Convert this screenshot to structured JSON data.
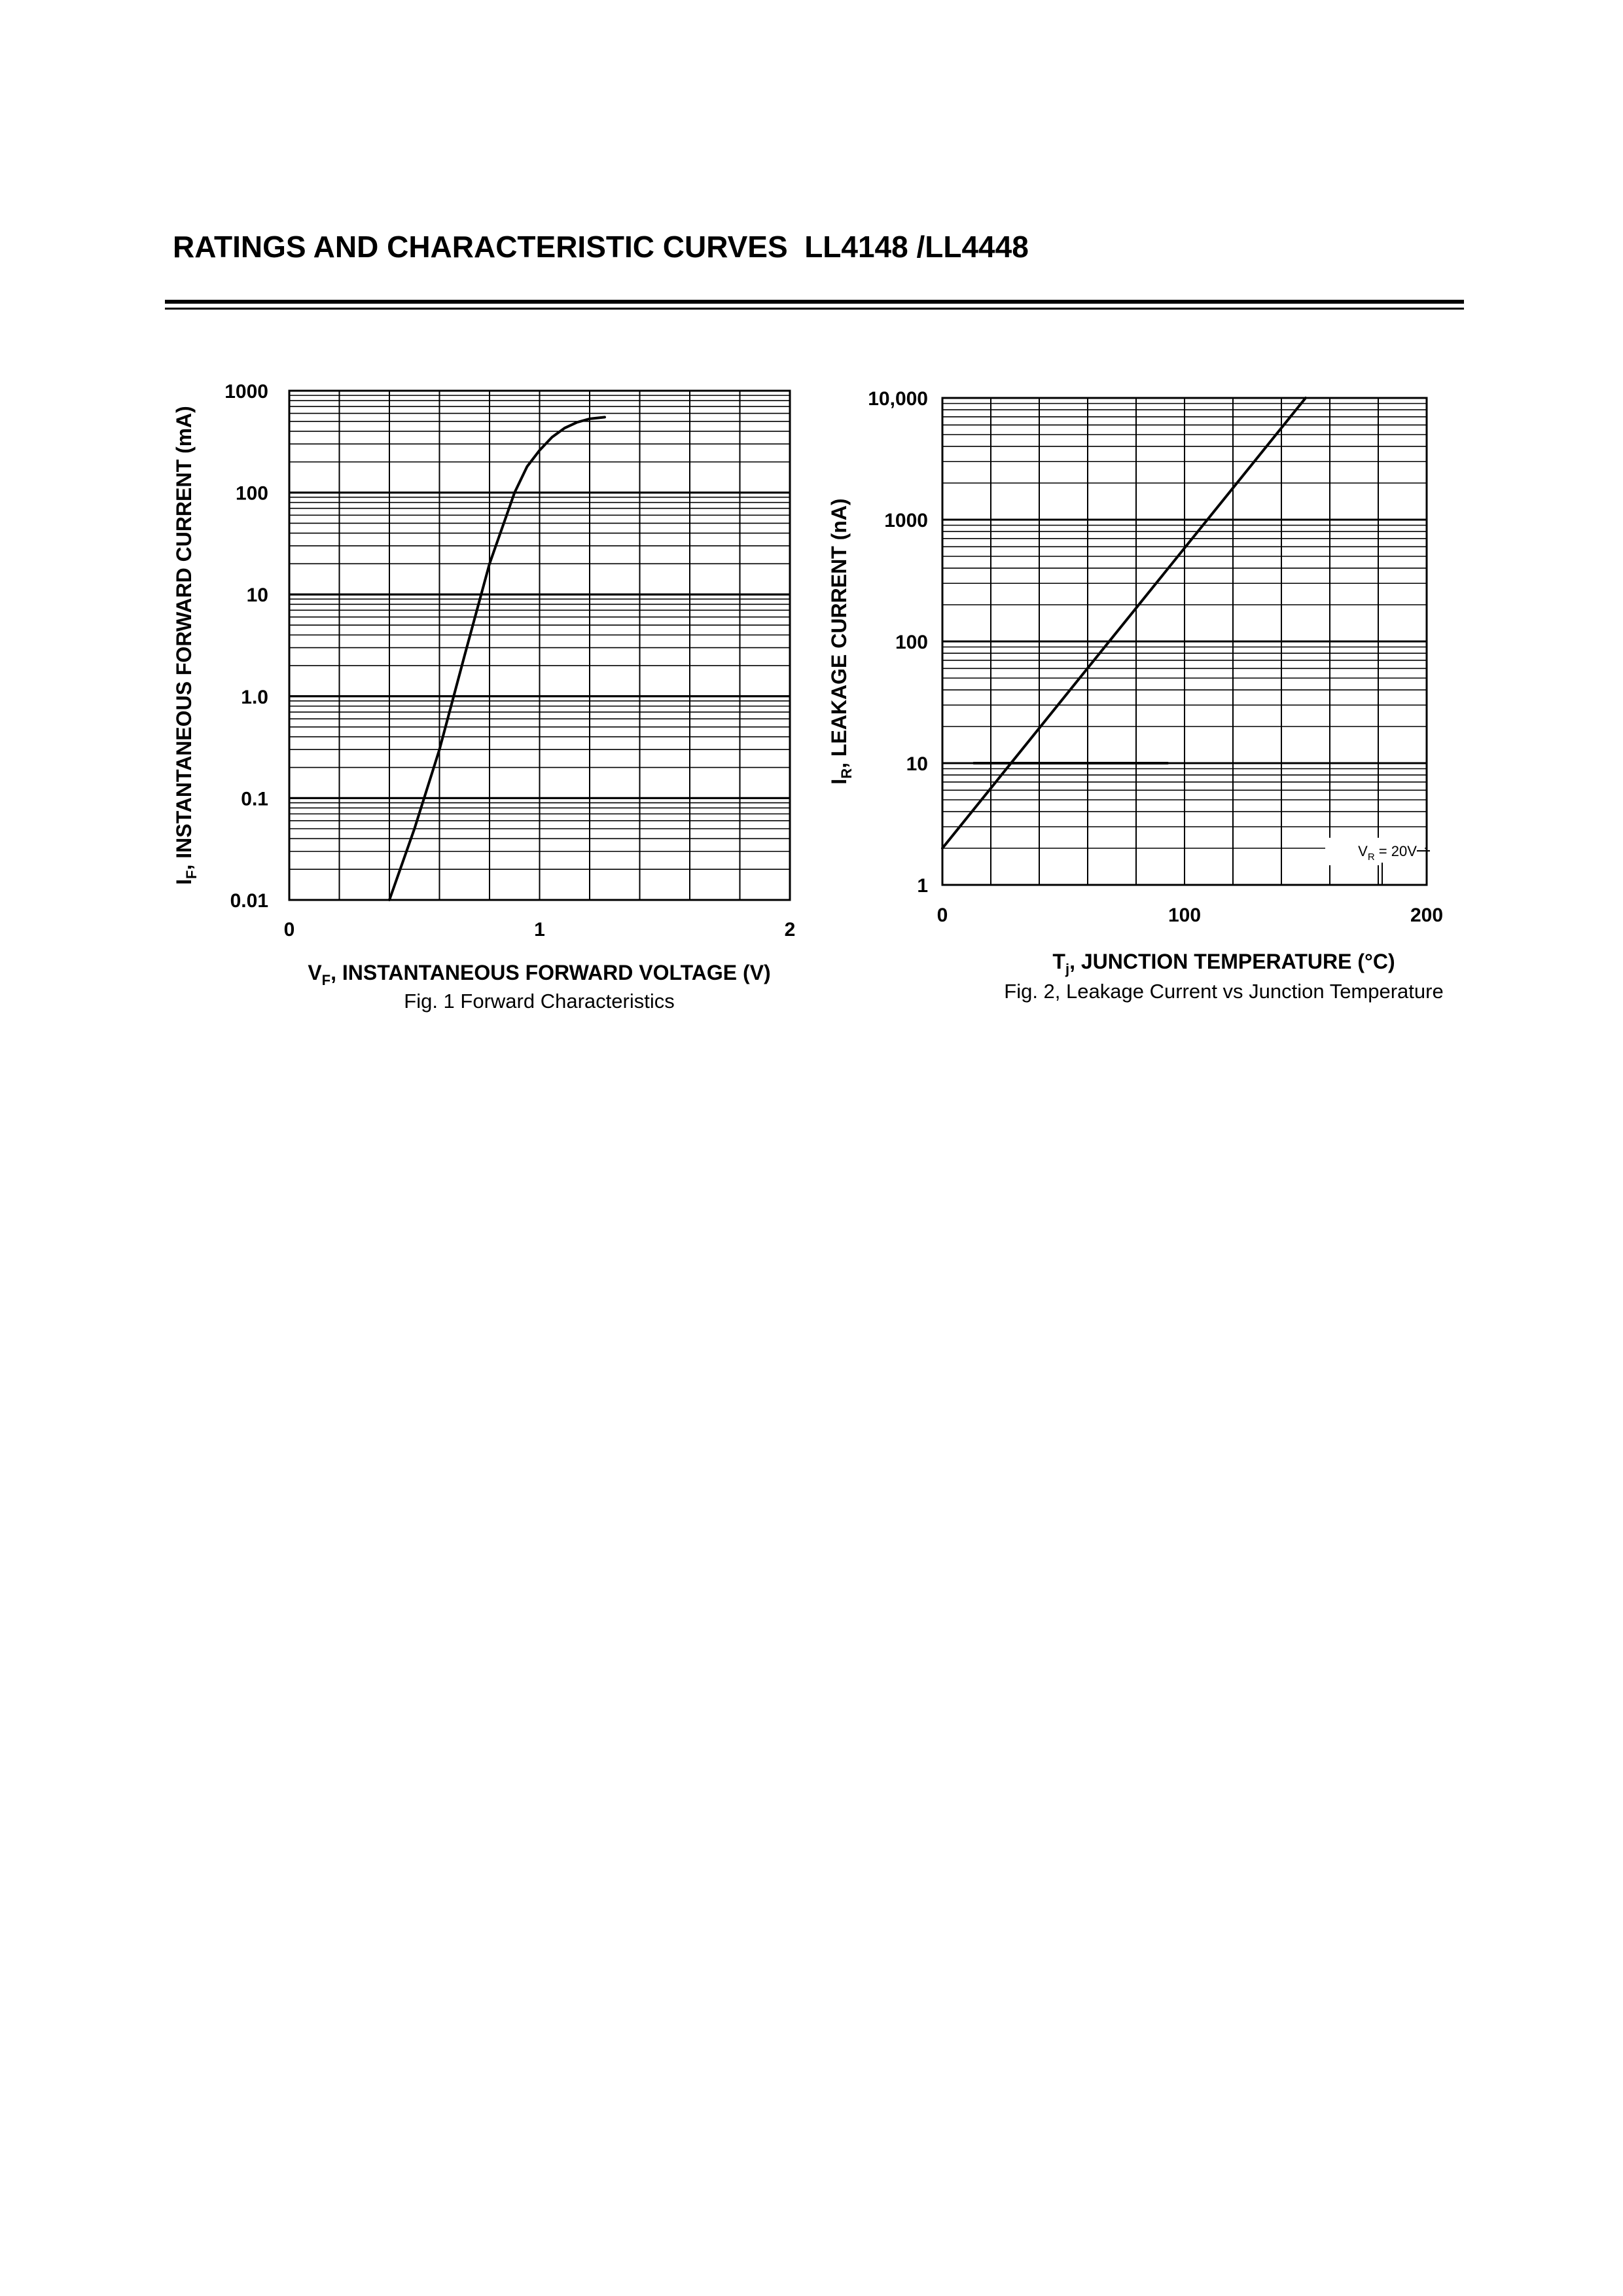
{
  "page": {
    "title": "RATINGS AND CHARACTERISTIC CURVES  LL4148 /LL4448"
  },
  "chart_data": [
    {
      "type": "line",
      "title": "",
      "caption": "Fig. 1  Forward Characteristics",
      "xlabel": {
        "symbol": "V",
        "sub": "F",
        "text": ", INSTANTANEOUS FORWARD VOLTAGE (V)"
      },
      "ylabel": {
        "symbol": "I",
        "sub": "F",
        "text": ", INSTANTANEOUS FORWARD CURRENT (mA)"
      },
      "xlim": [
        0,
        2
      ],
      "ylim": [
        0.01,
        1000
      ],
      "yscale": "log",
      "x_ticks": [
        0,
        1,
        2
      ],
      "x_tick_labels": [
        "0",
        "1",
        "2"
      ],
      "y_ticks": [
        1000,
        100,
        10,
        1,
        0.1,
        0.01
      ],
      "y_tick_labels": [
        "1000",
        "100",
        "10",
        "1.0",
        "0.1",
        "0.01"
      ],
      "grid": true,
      "series": [
        {
          "x": [
            0.4,
            0.5,
            0.6,
            0.7,
            0.8,
            0.9,
            0.95,
            1.0,
            1.05,
            1.1,
            1.15,
            1.2,
            1.26
          ],
          "values": [
            0.01,
            0.05,
            0.3,
            2.5,
            20,
            100,
            180,
            260,
            350,
            430,
            490,
            530,
            550
          ]
        }
      ]
    },
    {
      "type": "line",
      "title": "",
      "caption": "Fig. 2,  Leakage Current vs Junction Temperature",
      "xlabel": {
        "symbol": "T",
        "sub": "j",
        "text": ", JUNCTION TEMPERATURE (°C)"
      },
      "ylabel": {
        "symbol": "I",
        "sub": "R",
        "text": ", LEAKAGE CURRENT (nA)"
      },
      "xlim": [
        0,
        200
      ],
      "ylim": [
        1,
        10000
      ],
      "yscale": "log",
      "x_ticks": [
        0,
        100,
        200
      ],
      "x_tick_labels": [
        "0",
        "100",
        "200"
      ],
      "y_ticks": [
        10000,
        1000,
        100,
        10,
        1
      ],
      "y_tick_labels": [
        "10,000",
        "1000",
        "100",
        "10",
        "1"
      ],
      "grid": true,
      "annotation": {
        "symbol": "V",
        "sub": "R",
        "text": " = 20V"
      },
      "series": [
        {
          "x": [
            0,
            150
          ],
          "values": [
            2,
            10000
          ]
        },
        {
          "x": [
            13,
            93
          ],
          "values": [
            10,
            10
          ]
        }
      ]
    }
  ]
}
